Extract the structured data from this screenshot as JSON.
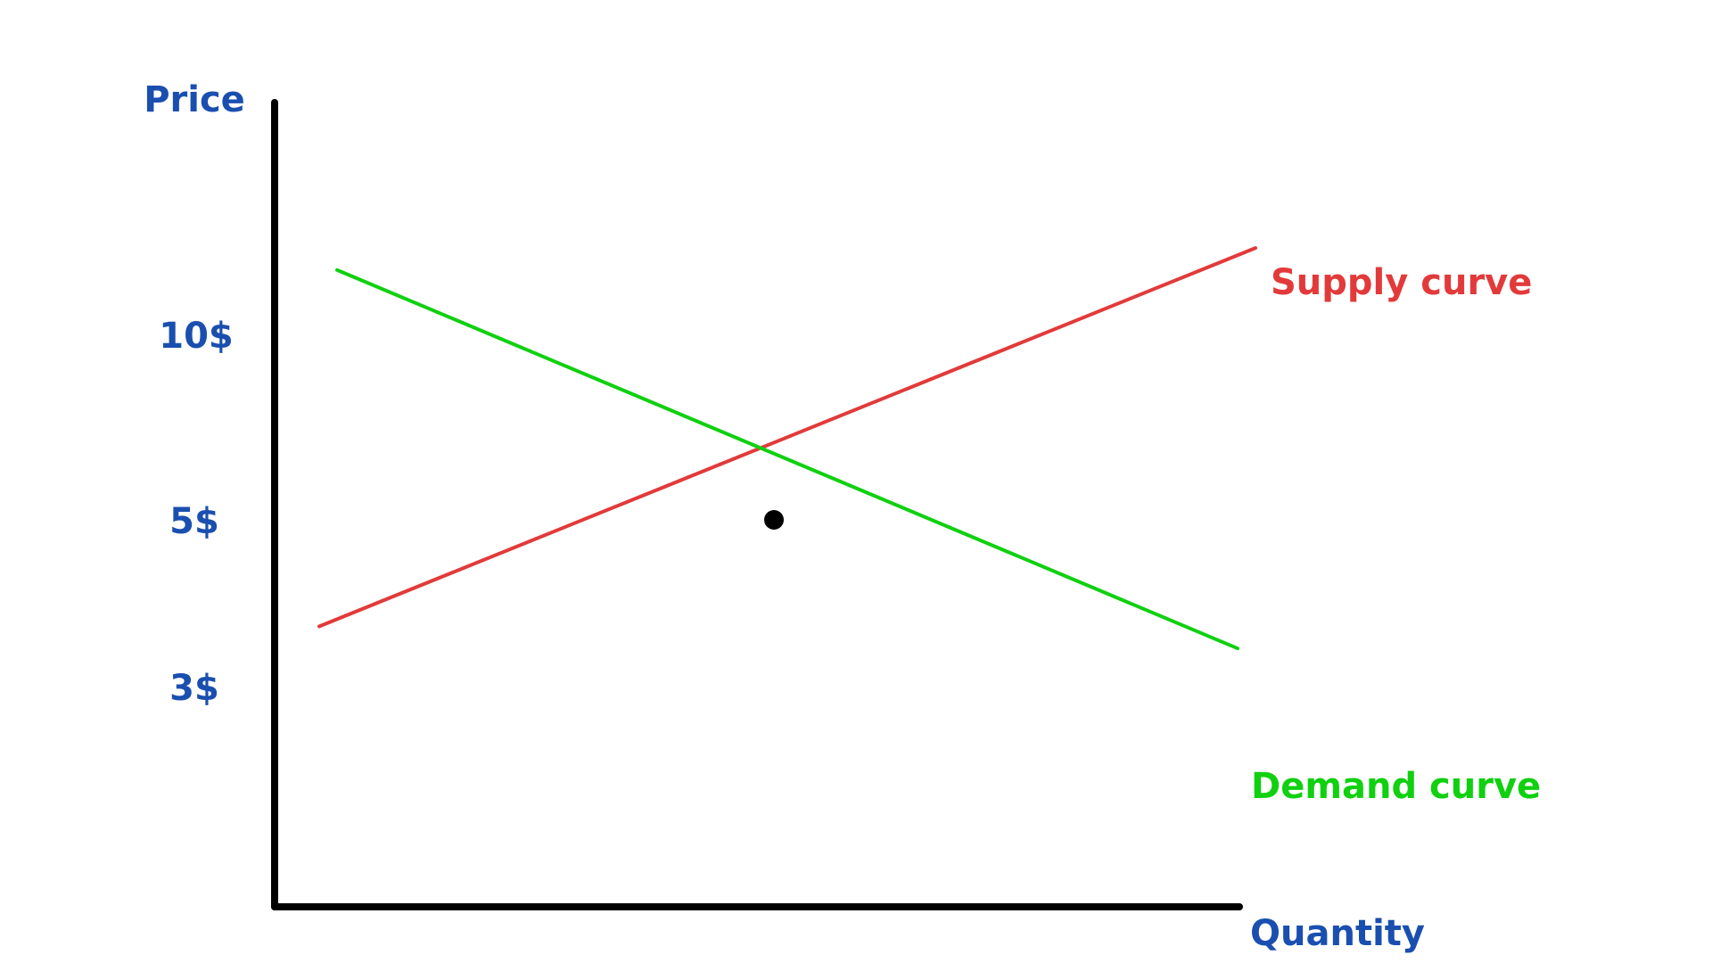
{
  "chart_data": {
    "type": "line",
    "ylabel": "Price",
    "xlabel": "Quantity",
    "y_ticks": [
      {
        "value": 10,
        "label": "10$"
      },
      {
        "value": 5,
        "label": "5$"
      },
      {
        "value": 3,
        "label": "3$"
      }
    ],
    "grid": false,
    "series": [
      {
        "name": "Supply curve",
        "color": "#e23a3a",
        "x": [
          0.5,
          11
        ],
        "y": [
          2.1,
          12.4
        ]
      },
      {
        "name": "Demand curve",
        "color": "#10d010",
        "x": [
          0.7,
          10.8
        ],
        "y": [
          11.8,
          1.5
        ]
      }
    ],
    "equilibrium": {
      "x": 5.6,
      "y": 5
    },
    "colors": {
      "axis": "#000000",
      "axis_labels": "#1a4fb0",
      "point": "#000000"
    }
  }
}
